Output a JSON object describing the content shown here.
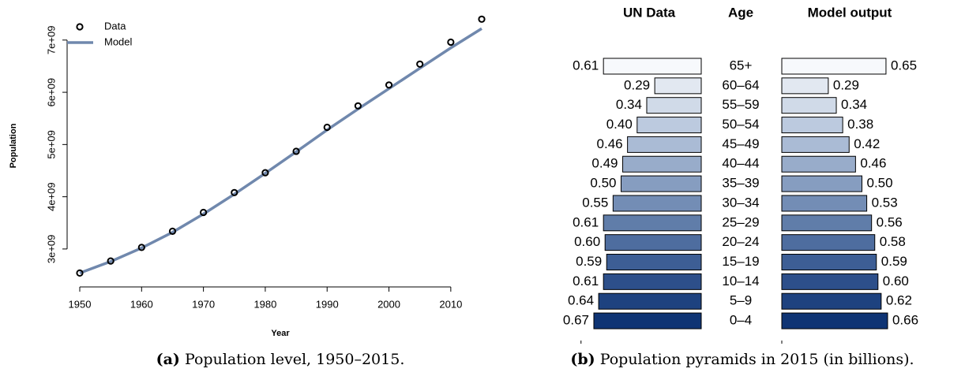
{
  "chart_data": [
    {
      "type": "line",
      "caption_label": "(a)",
      "caption": "Population level, 1950–2015.",
      "xlabel": "Year",
      "ylabel": "Population",
      "x": [
        1950,
        1955,
        1960,
        1965,
        1970,
        1975,
        1980,
        1985,
        1990,
        1995,
        2000,
        2005,
        2010,
        2015
      ],
      "series": [
        {
          "name": "Data",
          "style": "points",
          "color": "#000000",
          "values": [
            2540000000,
            2770000000,
            3030000000,
            3340000000,
            3700000000,
            4080000000,
            4460000000,
            4870000000,
            5330000000,
            5740000000,
            6140000000,
            6540000000,
            6960000000,
            7400000000
          ]
        },
        {
          "name": "Model",
          "style": "line",
          "color": "#7088ad",
          "values": [
            2540000000,
            2760000000,
            3020000000,
            3320000000,
            3670000000,
            4050000000,
            4450000000,
            4860000000,
            5280000000,
            5680000000,
            6070000000,
            6460000000,
            6850000000,
            7220000000
          ]
        }
      ],
      "xlim": [
        1950,
        2015
      ],
      "xticks": [
        1950,
        1960,
        1970,
        1980,
        1990,
        2000,
        2010
      ],
      "ylim": [
        2500000000,
        7450000000
      ],
      "yticks": [
        {
          "value": 3000000000,
          "label": "3e+09"
        },
        {
          "value": 4000000000,
          "label": "4e+09"
        },
        {
          "value": 5000000000,
          "label": "5e+09"
        },
        {
          "value": 6000000000,
          "label": "6e+09"
        },
        {
          "value": 7000000000,
          "label": "7e+09"
        }
      ],
      "legend": "top-left"
    },
    {
      "type": "pyramid",
      "caption_label": "(b)",
      "caption": "Population pyramids in 2015 (in billions).",
      "category_label": "Age",
      "categories": [
        "65+",
        "60–64",
        "55–59",
        "50–54",
        "45–49",
        "40–44",
        "35–39",
        "30–34",
        "25–29",
        "20–24",
        "15–19",
        "10–14",
        "5–9",
        "0–4"
      ],
      "colors": [
        "#f7f9fc",
        "#e2e8f1",
        "#d0dae8",
        "#bccadf",
        "#aabbd5",
        "#98acca",
        "#869dc0",
        "#738db5",
        "#607da9",
        "#4e6d9f",
        "#3d5e95",
        "#2d4f8a",
        "#1e427f",
        "#0f3474"
      ],
      "xlim": [
        0,
        0.75
      ],
      "series": [
        {
          "name": "UN Data",
          "side": "left",
          "values": [
            0.61,
            0.29,
            0.34,
            0.4,
            0.46,
            0.49,
            0.5,
            0.55,
            0.61,
            0.6,
            0.59,
            0.61,
            0.64,
            0.67
          ],
          "value_labels": [
            "0.61",
            "0.29",
            "0.34",
            "0.40",
            "0.46",
            "0.49",
            "0.50",
            "0.55",
            "0.61",
            "0.60",
            "0.59",
            "0.61",
            "0.64",
            "0.67"
          ]
        },
        {
          "name": "Model output",
          "side": "right",
          "values": [
            0.65,
            0.29,
            0.34,
            0.38,
            0.42,
            0.46,
            0.5,
            0.53,
            0.56,
            0.58,
            0.59,
            0.6,
            0.62,
            0.66
          ],
          "value_labels": [
            "0.65",
            "0.29",
            "0.34",
            "0.38",
            "0.42",
            "0.46",
            "0.50",
            "0.53",
            "0.56",
            "0.58",
            "0.59",
            "0.60",
            "0.62",
            "0.66"
          ]
        }
      ]
    }
  ]
}
